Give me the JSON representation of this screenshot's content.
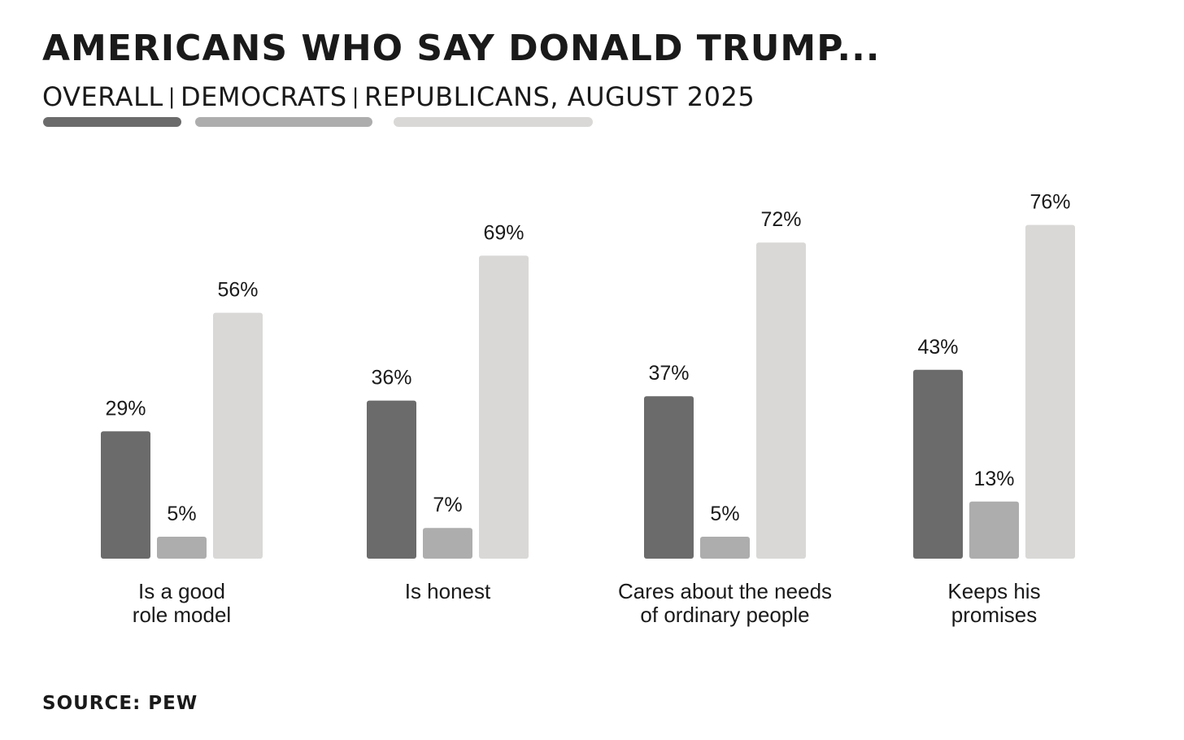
{
  "title": "AMERICANS WHO SAY DONALD TRUMP...",
  "subtitle": {
    "overall": "OVERALL",
    "democrats": "DEMOCRATS",
    "republicans": "REPUBLICANS, AUGUST 2025",
    "separator": "|"
  },
  "colors": {
    "overall": "#6b6b6b",
    "democrats": "#adadad",
    "republicans": "#d9d8d6"
  },
  "source": "SOURCE: PEW",
  "chart_data": {
    "type": "bar",
    "title": "AMERICANS WHO SAY DONALD TRUMP...",
    "xlabel": "",
    "ylabel": "",
    "ylim": [
      0,
      100
    ],
    "grid": false,
    "legend": "top-left (subtitle with color swatches)",
    "categories": [
      [
        "Is a good",
        "role model"
      ],
      [
        "Is honest"
      ],
      [
        "Cares about the needs",
        "of ordinary people"
      ],
      [
        "Keeps his",
        "promises"
      ]
    ],
    "series": [
      {
        "name": "OVERALL",
        "values": [
          29,
          36,
          37,
          43
        ],
        "labels": [
          "29%",
          "36%",
          "37%",
          "43%"
        ]
      },
      {
        "name": "DEMOCRATS",
        "values": [
          5,
          7,
          5,
          13
        ],
        "labels": [
          "5%",
          "7%",
          "5%",
          "13%"
        ]
      },
      {
        "name": "REPUBLICANS, AUGUST 2025",
        "values": [
          56,
          69,
          72,
          76
        ],
        "labels": [
          "56%",
          "69%",
          "72%",
          "76%"
        ]
      }
    ]
  }
}
